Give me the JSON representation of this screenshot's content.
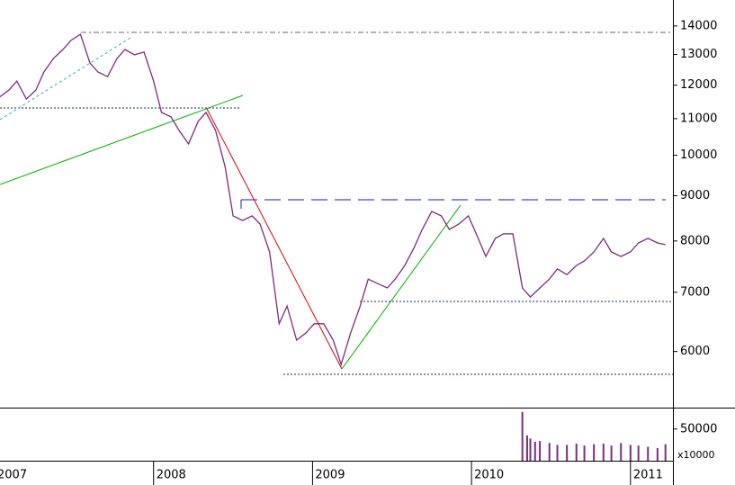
{
  "chart_data": [
    {
      "type": "line",
      "log": true,
      "x": [
        2007.03,
        2007.09,
        2007.14,
        2007.2,
        2007.26,
        2007.31,
        2007.37,
        2007.43,
        2007.48,
        2007.54,
        2007.6,
        2007.65,
        2007.71,
        2007.77,
        2007.82,
        2007.88,
        2007.94,
        2008.0,
        2008.05,
        2008.11,
        2008.16,
        2008.22,
        2008.28,
        2008.33,
        2008.39,
        2008.45,
        2008.5,
        2008.56,
        2008.62,
        2008.67,
        2008.73,
        2008.79,
        2008.84,
        2008.9,
        2008.96,
        2009.01,
        2009.07,
        2009.13,
        2009.18,
        2009.24,
        2009.3,
        2009.35,
        2009.41,
        2009.47,
        2009.52,
        2009.58,
        2009.64,
        2009.69,
        2009.75,
        2009.81,
        2009.86,
        2009.92,
        2009.98,
        2010.03,
        2010.09,
        2010.15,
        2010.2,
        2010.26,
        2010.32,
        2010.37,
        2010.43,
        2010.49,
        2010.54,
        2010.6,
        2010.66,
        2010.71,
        2010.77,
        2010.83,
        2010.88,
        2010.94,
        2011.0,
        2011.05,
        2011.11,
        2011.17,
        2011.22
      ],
      "series": [
        {
          "color": "#7b2d7b",
          "values": [
            11630,
            11850,
            12130,
            11575,
            11850,
            12420,
            12865,
            13170,
            13480,
            13700,
            12715,
            12420,
            12270,
            12865,
            13170,
            12990,
            13080,
            12130,
            11180,
            11050,
            10670,
            10300,
            10920,
            11180,
            10670,
            9710,
            8540,
            8440,
            8540,
            8360,
            7775,
            6450,
            6755,
            6180,
            6300,
            6450,
            6450,
            6180,
            5800,
            6300,
            6755,
            7245,
            7160,
            7080,
            7245,
            7505,
            7870,
            8245,
            8640,
            8540,
            8245,
            8360,
            8540,
            8150,
            7685,
            8055,
            8150,
            8150,
            7080,
            6915,
            7080,
            7245,
            7440,
            7330,
            7505,
            7595,
            7775,
            8055,
            7775,
            7685,
            7775,
            7960,
            8055,
            7960,
            7925
          ]
        }
      ],
      "xlim": [
        2007.034,
        2011.267
      ],
      "xticks": [
        2007,
        2008,
        2009,
        2010,
        2011
      ],
      "ylim": [
        5185,
        14980
      ],
      "yticks": [
        6000,
        7000,
        8000,
        9000,
        10000,
        11000,
        12000,
        13000,
        14000
      ]
    },
    {
      "type": "bar",
      "color": "#7b2d7b",
      "x": [
        2010.32,
        2010.35,
        2010.37,
        2010.4,
        2010.43,
        2010.49,
        2010.54,
        2010.6,
        2010.66,
        2010.71,
        2010.77,
        2010.83,
        2010.88,
        2010.94,
        2011.0,
        2011.05,
        2011.11,
        2011.17,
        2011.22
      ],
      "values": [
        77000,
        40000,
        35000,
        30000,
        31000,
        28000,
        25000,
        25000,
        27000,
        24000,
        26000,
        27000,
        24000,
        28000,
        25000,
        24000,
        22000,
        20000,
        26000
      ],
      "ylim": [
        0,
        81000
      ],
      "yticks": [
        50000
      ],
      "ylabel": "x10000"
    }
  ]
}
